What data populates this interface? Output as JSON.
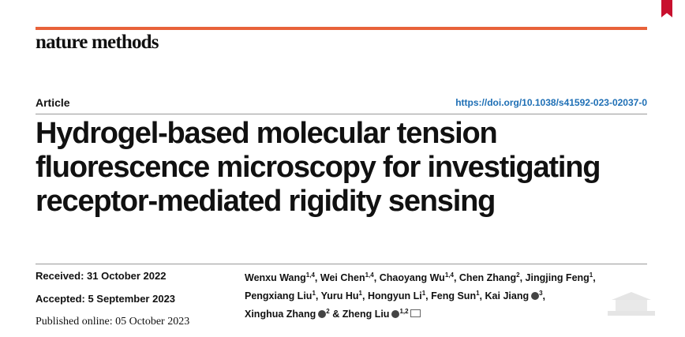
{
  "journal": "nature methods",
  "article_type": "Article",
  "doi": "https://doi.org/10.1038/s41592-023-02037-0",
  "title_lines": [
    "Hydrogel-based molecular tension",
    "fluorescence microscopy for investigating",
    "receptor-mediated rigidity sensing"
  ],
  "dates": [
    {
      "text": "Received: 31 October 2022",
      "style": "sans"
    },
    {
      "text": "Accepted: 5 September 2023",
      "style": "sans"
    },
    {
      "text": "Published online: 05 October 2023",
      "style": "serif"
    }
  ],
  "author_lines": [
    [
      {
        "name": "Wenxu Wang",
        "sup": "1,4",
        "sep": ","
      },
      {
        "name": "Wei Chen",
        "sup": "1,4",
        "sep": ","
      },
      {
        "name": "Chaoyang Wu",
        "sup": "1,4",
        "sep": ","
      },
      {
        "name": "Chen Zhang",
        "sup": "2",
        "sep": ","
      },
      {
        "name": "Jingjing Feng",
        "sup": "1",
        "sep": ","
      }
    ],
    [
      {
        "name": "Pengxiang Liu",
        "sup": "1",
        "sep": ","
      },
      {
        "name": "Yuru Hu",
        "sup": "1",
        "sep": ","
      },
      {
        "name": "Hongyun Li",
        "sup": "1",
        "sep": ","
      },
      {
        "name": "Feng Sun",
        "sup": "1",
        "sep": ","
      },
      {
        "name": "Kai Jiang",
        "orcid": true,
        "sup": "3",
        "sep": ","
      }
    ],
    [
      {
        "name": "Xinghua Zhang",
        "orcid": true,
        "sup": "2",
        "sep": "&"
      },
      {
        "name": "Zheng Liu",
        "orcid": true,
        "sup": "1,2",
        "mail": true
      }
    ]
  ]
}
